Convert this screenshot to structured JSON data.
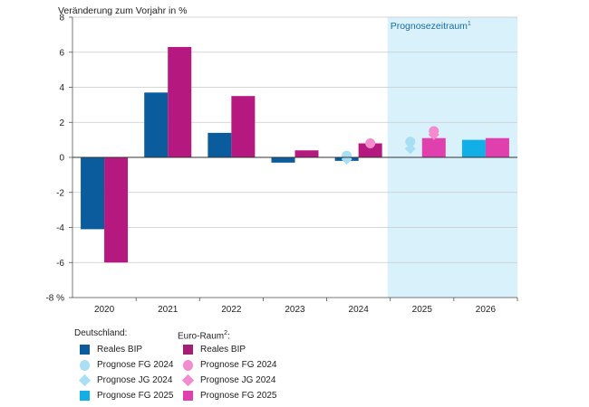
{
  "chart_data": {
    "type": "bar",
    "title": "Veränderung zum Vorjahr in %",
    "unit_label": "%",
    "ylim": [
      -8,
      8
    ],
    "yticks": [
      -8,
      -6,
      -4,
      -2,
      0,
      2,
      4,
      6,
      8
    ],
    "grid": true,
    "categories": [
      "2020",
      "2021",
      "2022",
      "2023",
      "2024",
      "2025",
      "2026"
    ],
    "forecast_region": {
      "label": "Prognosezeitraum",
      "footnote": "1",
      "from": "2025",
      "to": "2026"
    },
    "series": [
      {
        "name": "Reales BIP",
        "group": "Deutschland",
        "kind": "bar",
        "color": "#0a5c9c",
        "values": [
          -4.1,
          3.7,
          1.4,
          -0.3,
          -0.2,
          null,
          null
        ]
      },
      {
        "name": "Reales BIP",
        "group": "Euro-Raum",
        "kind": "bar",
        "color": "#b5197f",
        "values": [
          -6.0,
          6.3,
          3.5,
          0.4,
          0.8,
          null,
          null
        ]
      },
      {
        "name": "Prognose FG 2025",
        "group": "Deutschland",
        "kind": "bar",
        "color": "#12aee6",
        "values": [
          null,
          null,
          null,
          null,
          null,
          0.0,
          1.0
        ]
      },
      {
        "name": "Prognose FG 2025",
        "group": "Euro-Raum",
        "kind": "bar",
        "color": "#e03fae",
        "values": [
          null,
          null,
          null,
          null,
          null,
          1.1,
          1.1
        ]
      },
      {
        "name": "Prognose FG 2024",
        "group": "Deutschland",
        "kind": "circle",
        "color": "#a9dff4",
        "values": [
          null,
          null,
          null,
          null,
          0.1,
          0.9,
          null
        ]
      },
      {
        "name": "Prognose JG 2024",
        "group": "Deutschland",
        "kind": "diamond",
        "color": "#a9dff4",
        "values": [
          null,
          null,
          null,
          null,
          -0.1,
          0.5,
          null
        ]
      },
      {
        "name": "Prognose FG 2024",
        "group": "Euro-Raum",
        "kind": "circle",
        "color": "#f28cce",
        "values": [
          null,
          null,
          null,
          null,
          0.8,
          1.5,
          null
        ]
      },
      {
        "name": "Prognose JG 2024",
        "group": "Euro-Raum",
        "kind": "diamond",
        "color": "#f28cce",
        "values": [
          null,
          null,
          null,
          null,
          0.8,
          1.3,
          null
        ]
      }
    ]
  },
  "legend": {
    "deutschland": {
      "title": "Deutschland:",
      "items": [
        {
          "label": "Reales BIP",
          "shape": "square",
          "color": "#0a5c9c"
        },
        {
          "label": "Prognose FG 2024",
          "shape": "circle",
          "color": "#a9dff4"
        },
        {
          "label": "Prognose JG 2024",
          "shape": "diamond",
          "color": "#a9dff4"
        },
        {
          "label": "Prognose FG 2025",
          "shape": "square",
          "color": "#12aee6"
        }
      ]
    },
    "euro": {
      "title": "Euro-Raum",
      "title_sup": "2",
      "title_suffix": ":",
      "items": [
        {
          "label": "Reales BIP",
          "shape": "square",
          "color": "#a31e74"
        },
        {
          "label": "Prognose FG 2024",
          "shape": "circle",
          "color": "#f28cce"
        },
        {
          "label": "Prognose JG 2024",
          "shape": "diamond",
          "color": "#f28cce"
        },
        {
          "label": "Prognose FG 2025",
          "shape": "square",
          "color": "#e03fae"
        }
      ]
    }
  }
}
